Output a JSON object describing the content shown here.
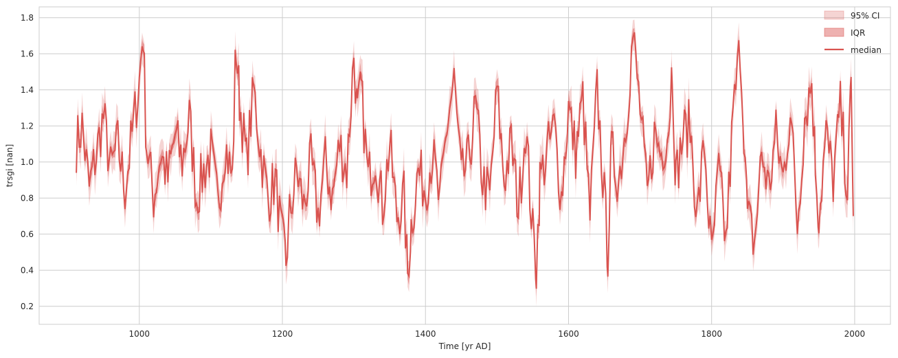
{
  "chart_data": {
    "type": "line",
    "title": "",
    "xlabel": "Time [yr AD]",
    "ylabel": "trsgi [nan]",
    "xlim": [
      860,
      2050
    ],
    "ylim": [
      0.1,
      1.86
    ],
    "xticks": [
      1000,
      1200,
      1400,
      1600,
      1800,
      2000
    ],
    "yticks": [
      0.2,
      0.4,
      0.6,
      0.8,
      1.0,
      1.2,
      1.4,
      1.6,
      1.8
    ],
    "xtick_labels": [
      "1000",
      "1200",
      "1400",
      "1600",
      "1800",
      "2000"
    ],
    "ytick_labels": [
      "0.2",
      "0.4",
      "0.6",
      "0.8",
      "1.0",
      "1.2",
      "1.4",
      "1.6",
      "1.8"
    ],
    "grid": true,
    "legend_position": "top-right",
    "series": [
      {
        "name": "95% CI",
        "kind": "band",
        "color": "#d9534f",
        "opacity": 0.25
      },
      {
        "name": "IQR",
        "kind": "band",
        "color": "#d9534f",
        "opacity": 0.4
      },
      {
        "name": "median",
        "kind": "line",
        "color": "#d9534f"
      }
    ],
    "x": [
      912,
      920,
      930,
      940,
      950,
      960,
      970,
      980,
      990,
      1000,
      1005,
      1010,
      1020,
      1030,
      1040,
      1050,
      1060,
      1070,
      1080,
      1090,
      1100,
      1110,
      1120,
      1130,
      1135,
      1140,
      1150,
      1160,
      1170,
      1180,
      1190,
      1200,
      1205,
      1210,
      1220,
      1230,
      1240,
      1250,
      1260,
      1270,
      1280,
      1290,
      1300,
      1305,
      1310,
      1320,
      1330,
      1340,
      1350,
      1360,
      1370,
      1375,
      1380,
      1390,
      1400,
      1410,
      1420,
      1430,
      1440,
      1450,
      1460,
      1470,
      1480,
      1490,
      1500,
      1510,
      1520,
      1530,
      1540,
      1550,
      1555,
      1560,
      1570,
      1580,
      1590,
      1600,
      1610,
      1620,
      1630,
      1640,
      1650,
      1655,
      1660,
      1670,
      1680,
      1690,
      1700,
      1710,
      1720,
      1730,
      1740,
      1745,
      1750,
      1760,
      1770,
      1780,
      1790,
      1800,
      1810,
      1820,
      1830,
      1840,
      1845,
      1850,
      1860,
      1870,
      1880,
      1890,
      1900,
      1910,
      1920,
      1930,
      1940,
      1945,
      1950,
      1960,
      1970,
      1980,
      1990,
      1995,
      1998
    ],
    "median": [
      1.1,
      1.2,
      0.85,
      1.05,
      1.25,
      0.95,
      1.1,
      0.85,
      1.15,
      1.45,
      1.72,
      1.1,
      0.8,
      1.05,
      0.9,
      1.15,
      1.0,
      1.25,
      0.8,
      0.95,
      1.05,
      0.75,
      1.1,
      0.9,
      1.65,
      1.35,
      1.0,
      1.4,
      1.05,
      0.8,
      0.9,
      0.55,
      0.45,
      0.7,
      0.95,
      0.75,
      1.0,
      0.7,
      1.0,
      0.8,
      1.1,
      0.95,
      1.6,
      1.25,
      1.4,
      0.9,
      1.05,
      0.75,
      1.1,
      0.7,
      0.8,
      0.38,
      0.65,
      0.95,
      0.85,
      1.05,
      0.75,
      1.2,
      1.45,
      0.9,
      1.0,
      1.3,
      0.9,
      0.8,
      1.4,
      0.9,
      1.1,
      0.75,
      1.2,
      0.6,
      0.42,
      0.9,
      1.05,
      1.2,
      0.8,
      1.3,
      1.05,
      1.35,
      0.7,
      1.4,
      0.8,
      0.5,
      1.05,
      0.9,
      1.2,
      1.7,
      1.3,
      0.8,
      1.15,
      1.05,
      1.2,
      1.55,
      0.9,
      1.15,
      1.2,
      0.7,
      1.1,
      0.45,
      0.95,
      0.55,
      1.25,
      1.65,
      1.2,
      0.7,
      0.55,
      1.05,
      0.85,
      1.15,
      0.9,
      1.3,
      0.65,
      1.25,
      1.45,
      1.0,
      0.7,
      1.15,
      0.9,
      1.3,
      0.85,
      1.4,
      0.7
    ]
  },
  "legend": {
    "ci_label": "95% CI",
    "iqr_label": "IQR",
    "median_label": "median"
  }
}
